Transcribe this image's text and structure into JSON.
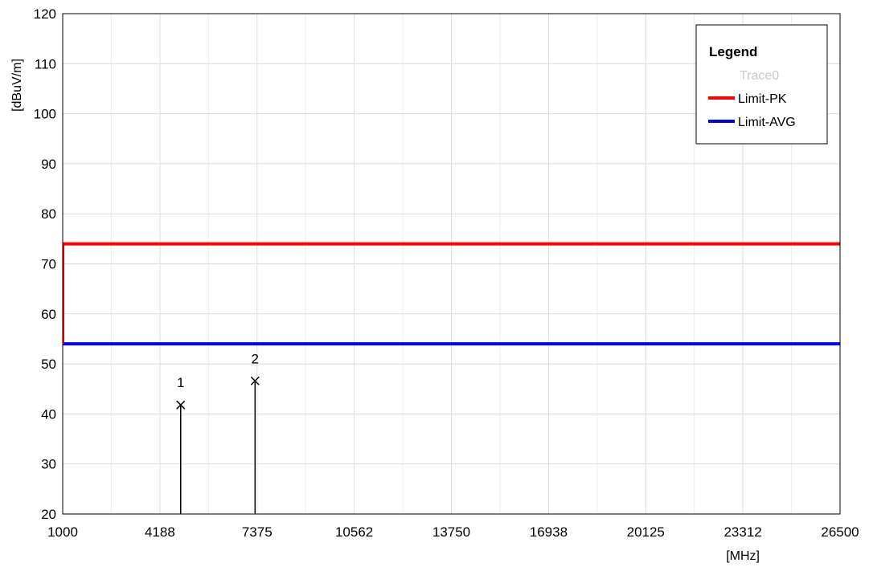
{
  "chart_data": {
    "type": "line",
    "xlabel": "[MHz]",
    "ylabel": "[dBuV/m]",
    "xlim": [
      1000,
      26500
    ],
    "ylim": [
      20,
      120
    ],
    "x_ticks": [
      "1000",
      "4188",
      "7375",
      "10562",
      "13750",
      "16938",
      "20125",
      "23312",
      "26500"
    ],
    "y_ticks": [
      "20",
      "30",
      "40",
      "50",
      "60",
      "70",
      "80",
      "90",
      "100",
      "110",
      "120"
    ],
    "grid": true,
    "legend": {
      "title": "Legend",
      "placement": "top-right",
      "entries": [
        {
          "name": "Trace0",
          "color": "#c8c8c8",
          "line": false
        },
        {
          "name": "Limit-PK",
          "color": "#ff0000",
          "line": true
        },
        {
          "name": "Limit-AVG",
          "color": "#0000ff",
          "line": true
        }
      ]
    },
    "series": [
      {
        "name": "Limit-PK",
        "color": "#ff0000",
        "x": [
          1000,
          26500
        ],
        "y": [
          74,
          74
        ]
      },
      {
        "name": "Limit-AVG",
        "color": "#0000ff",
        "x": [
          1000,
          26500
        ],
        "y": [
          54,
          54
        ]
      }
    ],
    "markers": [
      {
        "label": "1",
        "x": 4870,
        "y": 41.8
      },
      {
        "label": "2",
        "x": 7310,
        "y": 46.6
      }
    ]
  }
}
